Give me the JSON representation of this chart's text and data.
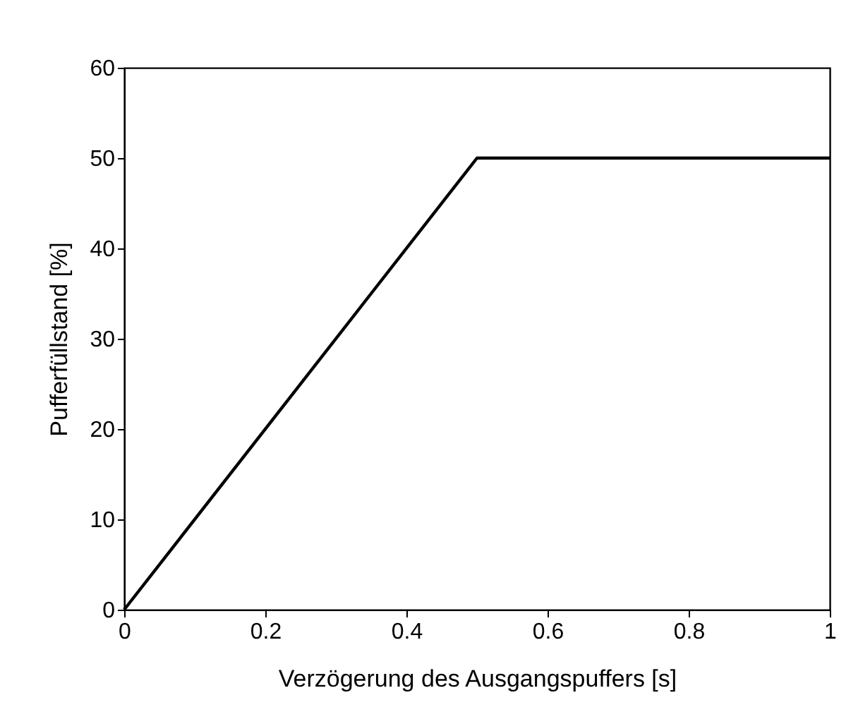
{
  "chart_data": {
    "type": "line",
    "xlabel": "Verzögerung des Ausgangspuffers [s]",
    "ylabel": "Pufferfüllstand [%]",
    "x": [
      0,
      0.5,
      1
    ],
    "series": [
      {
        "color": "#000000",
        "values": [
          0,
          50,
          50
        ]
      }
    ],
    "xlim": [
      0,
      1
    ],
    "xticks": [
      0,
      0.2,
      0.4,
      0.6,
      0.8,
      1
    ],
    "ylim": [
      0,
      60
    ],
    "yticks": [
      0,
      10,
      20,
      30,
      40,
      50,
      60
    ],
    "grid": false,
    "marker": "none",
    "line_style": "solid"
  }
}
